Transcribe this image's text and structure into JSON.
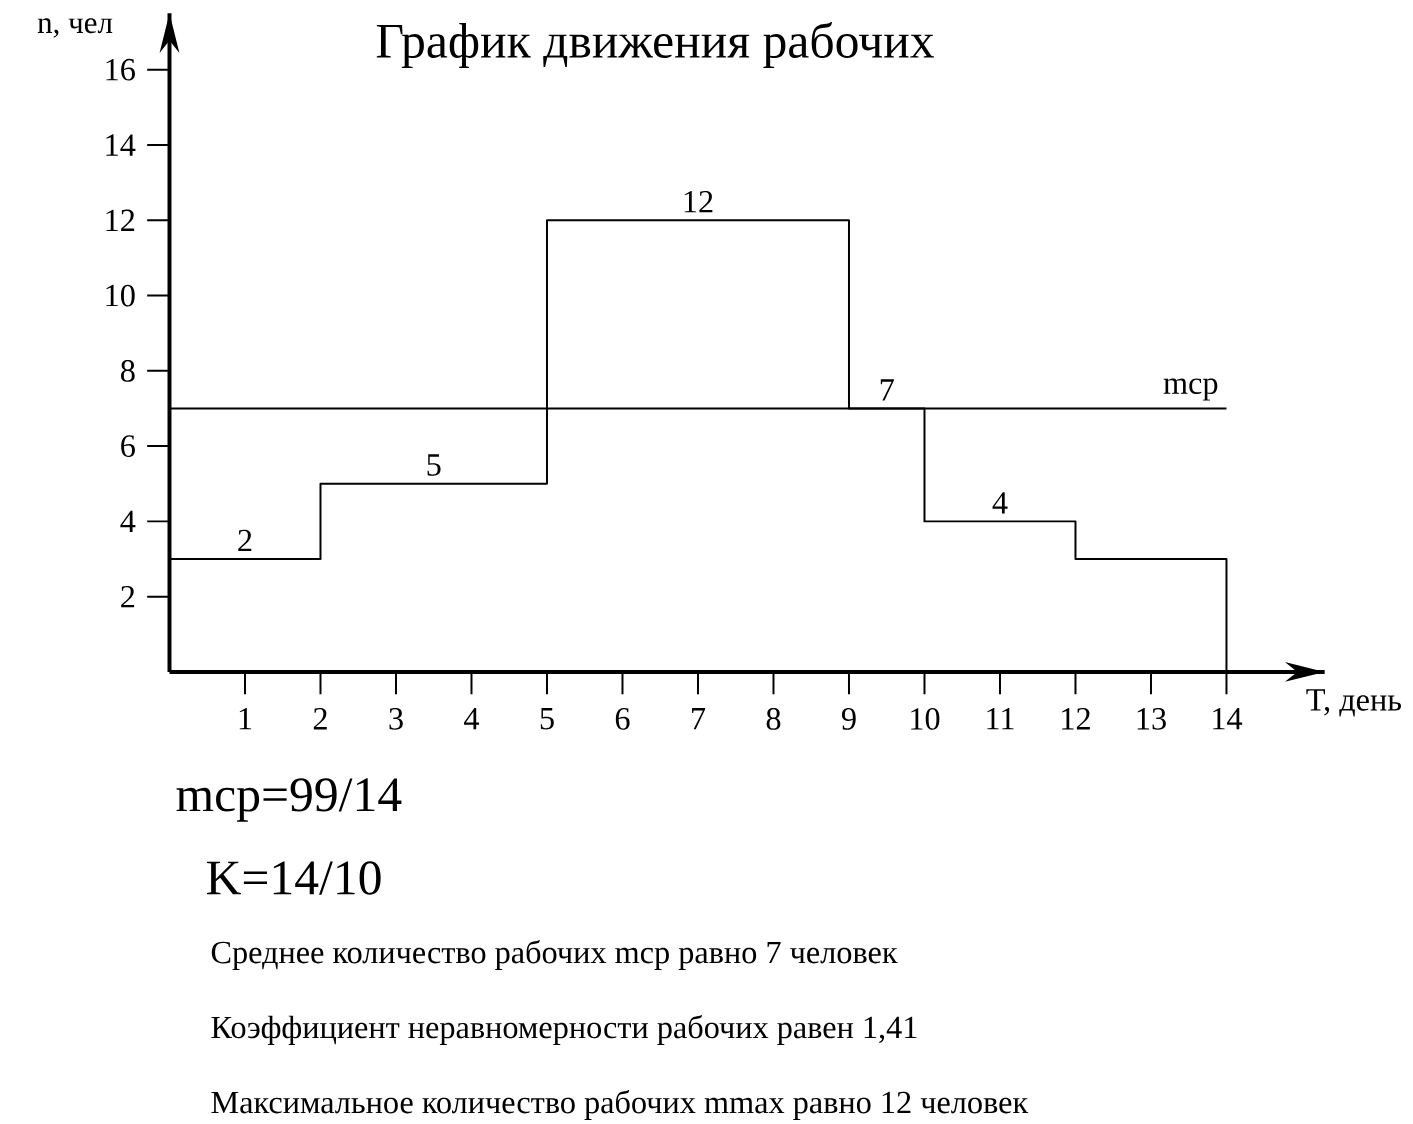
{
  "chart_data": {
    "type": "step",
    "title": "График движения рабочих",
    "xlabel": "T, день",
    "ylabel": "n, чел",
    "x": [
      0,
      2,
      5,
      9,
      10,
      12,
      14
    ],
    "values": [
      3,
      5,
      12,
      7,
      4,
      3,
      0
    ],
    "color": "#000000",
    "xlim": [
      0,
      15.3
    ],
    "ylim": [
      0,
      17.5
    ],
    "xticks": [
      1,
      2,
      3,
      4,
      5,
      6,
      7,
      8,
      9,
      10,
      11,
      12,
      13,
      14
    ],
    "yticks": [
      2,
      4,
      6,
      8,
      10,
      12,
      14,
      16
    ],
    "ref_lines": [
      {
        "axis": "y",
        "value": 7,
        "label": "mcp"
      }
    ],
    "annotations": [
      {
        "text": "2",
        "x": 1,
        "y": 3
      },
      {
        "text": "5",
        "x": 3.5,
        "y": 5
      },
      {
        "text": "12",
        "x": 7,
        "y": 12
      },
      {
        "text": "7",
        "x": 9.5,
        "y": 7
      },
      {
        "text": "4",
        "x": 11,
        "y": 4
      },
      "mcp=99/14",
      "K=14/10",
      "Среднее количество рабочих mcp равно 7 человек",
      "Коэффициент неравномерности рабочих равен 1,41",
      "Максимальное количество рабочих mmax равно 12 человек"
    ]
  }
}
